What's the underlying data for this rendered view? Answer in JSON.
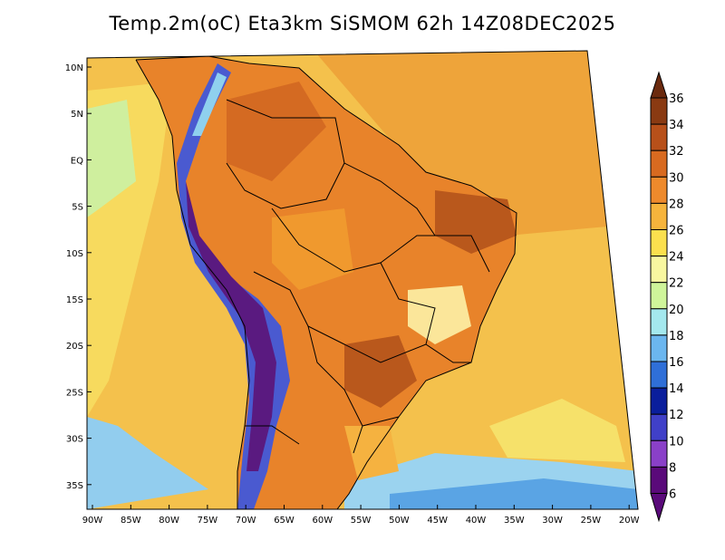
{
  "title": "Temp.2m(oC) Eta3km SiSMOM 62h 14Z08DEC2025",
  "lat_labels": [
    "10N",
    "5N",
    "EQ",
    "5S",
    "10S",
    "15S",
    "20S",
    "25S",
    "30S",
    "35S"
  ],
  "lon_labels": [
    "90W",
    "85W",
    "80W",
    "75W",
    "70W",
    "65W",
    "60W",
    "55W",
    "50W",
    "45W",
    "40W",
    "35W",
    "30W",
    "25W",
    "20W"
  ],
  "colorbar": {
    "labels": [
      "36",
      "34",
      "32",
      "30",
      "28",
      "26",
      "24",
      "22",
      "20",
      "18",
      "16",
      "14",
      "12",
      "10",
      "8",
      "6"
    ],
    "colors": [
      "#6b2a0e",
      "#8a3a12",
      "#b8501a",
      "#d86a20",
      "#ee8a2c",
      "#f6b43c",
      "#fbe04e",
      "#f8f7a0",
      "#cff59a",
      "#a4e8ee",
      "#6bb6ef",
      "#2f6fd8",
      "#0a1e9c",
      "#4040c8",
      "#8a40c8",
      "#5a0a7a"
    ]
  },
  "palette": {
    "ocean_warm": "#f2b245",
    "ocean_cool": "#f6d65a",
    "land_hot": "#e07a26",
    "land_very_hot": "#b9581c",
    "andes_cold": "#3a46c8",
    "andes_very_cold": "#5a1a80",
    "south_ocean": "#7fc6ee",
    "outline": "#000000"
  }
}
